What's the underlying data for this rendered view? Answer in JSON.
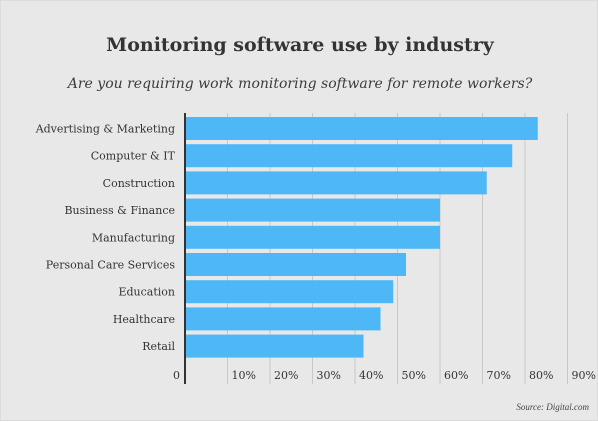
{
  "title": "Monitoring software use by industry",
  "subtitle": "Are you requiring work monitoring software for remote workers?",
  "source": "Source: Digital.com",
  "colors": {
    "bar": "#4db8f5",
    "grid": "#c8c8c8",
    "axis": "#333333",
    "background": "#e8e8e8"
  },
  "chart_data": {
    "type": "bar",
    "orientation": "horizontal",
    "title": "Monitoring software use by industry",
    "subtitle": "Are you requiring work monitoring software for remote workers?",
    "categories": [
      "Advertising & Marketing",
      "Computer & IT",
      "Construction",
      "Business & Finance",
      "Manufacturing",
      "Personal Care Services",
      "Education",
      "Healthcare",
      "Retail"
    ],
    "values": [
      83,
      77,
      71,
      60,
      60,
      52,
      49,
      46,
      42
    ],
    "xlim": [
      0,
      90
    ],
    "ticks": [
      0,
      10,
      20,
      30,
      40,
      50,
      60,
      70,
      80,
      90
    ],
    "tick_labels": [
      "0",
      "10%",
      "20%",
      "30%",
      "40%",
      "50%",
      "60%",
      "70%",
      "80%",
      "90%"
    ],
    "grid": true,
    "legend": "none"
  }
}
